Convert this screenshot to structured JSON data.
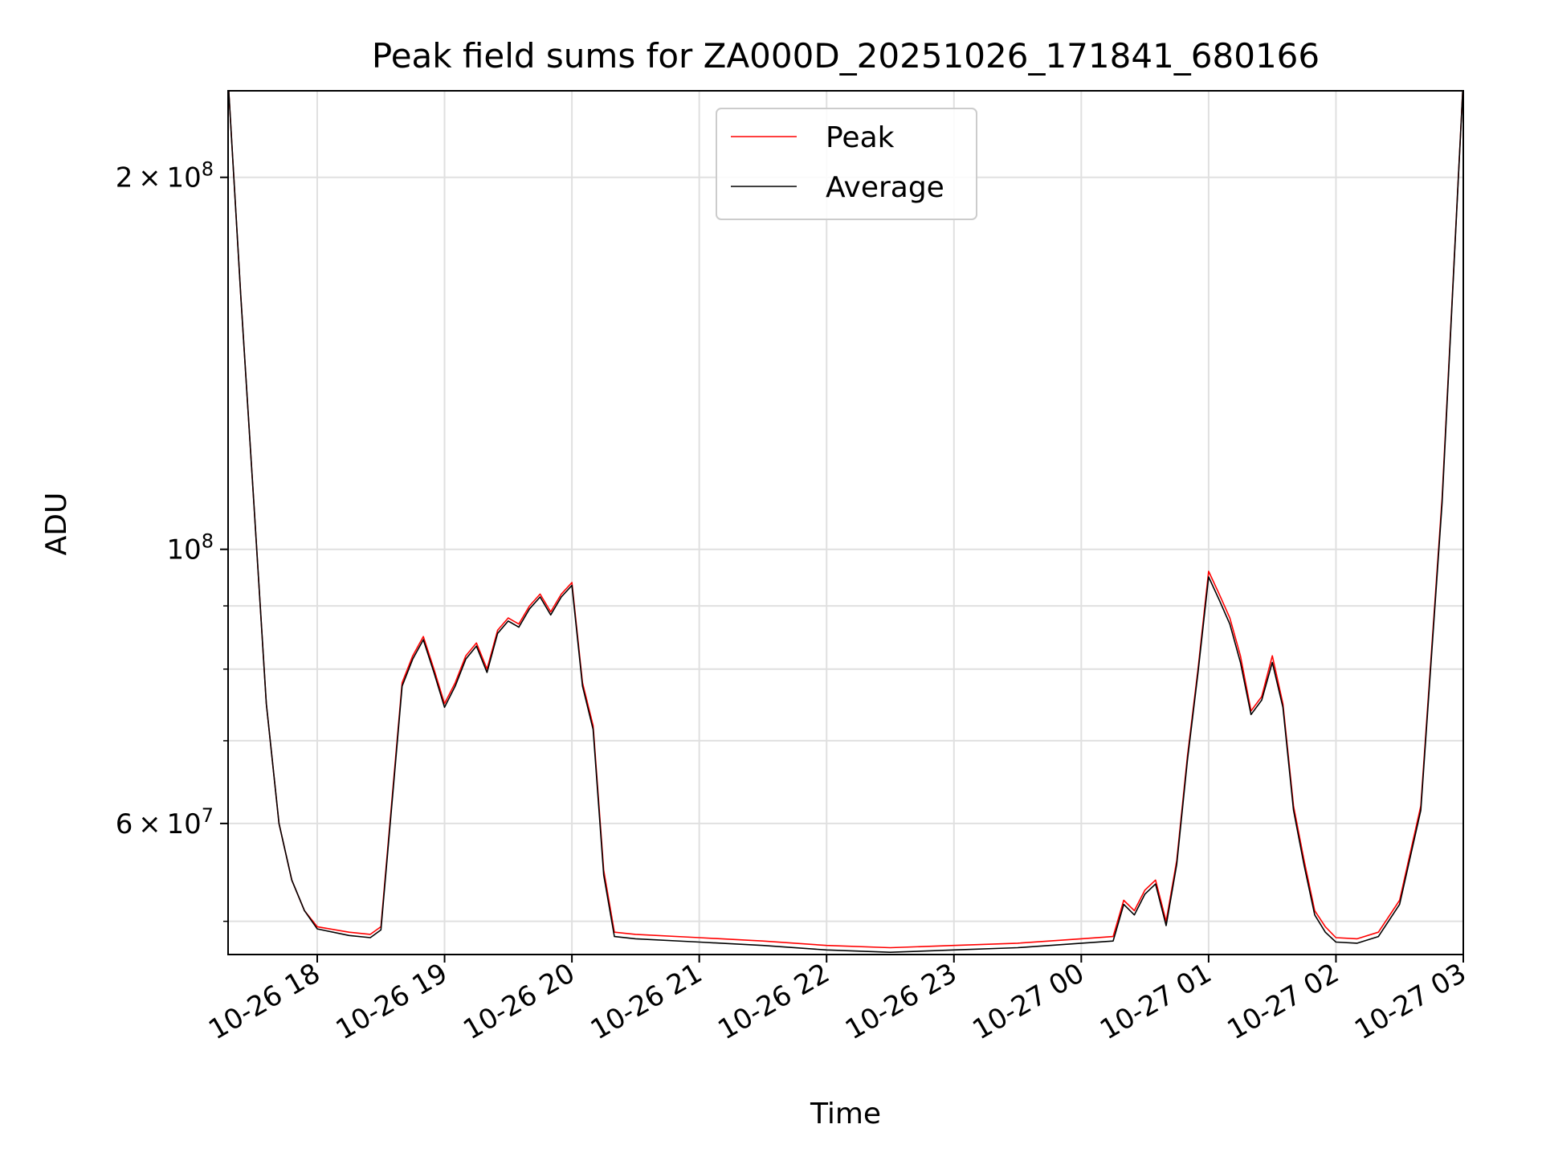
{
  "chart_data": {
    "type": "line",
    "title": "Peak field sums for ZA000D_20251026_171841_680166",
    "xlabel": "Time",
    "ylabel": "ADU",
    "yscale": "log",
    "ylim": [
      47000000,
      235000000
    ],
    "xlim": [
      "2025-10-26 17:18",
      "2025-10-27 03:00"
    ],
    "grid": true,
    "legend": {
      "placement": "upper center"
    },
    "x_tick_labels": [
      "10-26 18",
      "10-26 19",
      "10-26 20",
      "10-26 21",
      "10-26 22",
      "10-26 23",
      "10-27 00",
      "10-27 01",
      "10-27 02",
      "10-27 03"
    ],
    "x_ticks": [
      "2025-10-26 18:00",
      "2025-10-26 19:00",
      "2025-10-26 20:00",
      "2025-10-26 21:00",
      "2025-10-26 22:00",
      "2025-10-26 23:00",
      "2025-10-27 00:00",
      "2025-10-27 01:00",
      "2025-10-27 02:00",
      "2025-10-27 03:00"
    ],
    "y_major_ticks": [
      {
        "value": 60000000,
        "label_mant": "6",
        "label_exp": "7"
      },
      {
        "value": 100000000,
        "label_mant": "",
        "label_exp": "8"
      },
      {
        "value": 200000000,
        "label_mant": "2",
        "label_exp": "8"
      }
    ],
    "y_minor_ticks": [
      50000000,
      70000000,
      80000000,
      90000000
    ],
    "x": [
      "2025-10-26 17:18",
      "2025-10-26 17:24",
      "2025-10-26 17:30",
      "2025-10-26 17:36",
      "2025-10-26 17:42",
      "2025-10-26 17:48",
      "2025-10-26 17:54",
      "2025-10-26 18:00",
      "2025-10-26 18:15",
      "2025-10-26 18:25",
      "2025-10-26 18:30",
      "2025-10-26 18:36",
      "2025-10-26 18:40",
      "2025-10-26 18:45",
      "2025-10-26 18:50",
      "2025-10-26 18:55",
      "2025-10-26 19:00",
      "2025-10-26 19:05",
      "2025-10-26 19:10",
      "2025-10-26 19:15",
      "2025-10-26 19:20",
      "2025-10-26 19:25",
      "2025-10-26 19:30",
      "2025-10-26 19:35",
      "2025-10-26 19:40",
      "2025-10-26 19:45",
      "2025-10-26 19:50",
      "2025-10-26 19:55",
      "2025-10-26 20:00",
      "2025-10-26 20:05",
      "2025-10-26 20:10",
      "2025-10-26 20:15",
      "2025-10-26 20:20",
      "2025-10-26 20:30",
      "2025-10-26 21:00",
      "2025-10-26 21:30",
      "2025-10-26 22:00",
      "2025-10-26 22:30",
      "2025-10-26 23:00",
      "2025-10-26 23:30",
      "2025-10-27 00:00",
      "2025-10-27 00:15",
      "2025-10-27 00:20",
      "2025-10-27 00:25",
      "2025-10-27 00:30",
      "2025-10-27 00:35",
      "2025-10-27 00:40",
      "2025-10-27 00:45",
      "2025-10-27 00:50",
      "2025-10-27 00:55",
      "2025-10-27 01:00",
      "2025-10-27 01:05",
      "2025-10-27 01:10",
      "2025-10-27 01:15",
      "2025-10-27 01:20",
      "2025-10-27 01:25",
      "2025-10-27 01:30",
      "2025-10-27 01:35",
      "2025-10-27 01:40",
      "2025-10-27 01:45",
      "2025-10-27 01:50",
      "2025-10-27 01:55",
      "2025-10-27 02:00",
      "2025-10-27 02:10",
      "2025-10-27 02:20",
      "2025-10-27 02:30",
      "2025-10-27 02:40",
      "2025-10-27 02:50",
      "2025-10-27 03:00"
    ],
    "series": [
      {
        "name": "Peak",
        "color": "#ff0000",
        "values": [
          240000000,
          160000000,
          110000000,
          75000000,
          60000000,
          54000000,
          51000000,
          49500000,
          49000000,
          48800000,
          49500000,
          65000000,
          78000000,
          82000000,
          85000000,
          80000000,
          75000000,
          78000000,
          82000000,
          84000000,
          80000000,
          86000000,
          88000000,
          87000000,
          90000000,
          92000000,
          89000000,
          92000000,
          94000000,
          78000000,
          72000000,
          55000000,
          49000000,
          48800000,
          48500000,
          48200000,
          47800000,
          47600000,
          47800000,
          48000000,
          48400000,
          48600000,
          52000000,
          51000000,
          53000000,
          54000000,
          50000000,
          56000000,
          68000000,
          80000000,
          96000000,
          92000000,
          88000000,
          82000000,
          74000000,
          76000000,
          82000000,
          75000000,
          62000000,
          56000000,
          51000000,
          49500000,
          48500000,
          48400000,
          49000000,
          52000000,
          62000000,
          110000000,
          240000000
        ]
      },
      {
        "name": "Average",
        "color": "#000000",
        "values": [
          240000000,
          160000000,
          110000000,
          75000000,
          60000000,
          54000000,
          51000000,
          49300000,
          48700000,
          48500000,
          49200000,
          64500000,
          77500000,
          81500000,
          84500000,
          79500000,
          74500000,
          77500000,
          81500000,
          83500000,
          79500000,
          85500000,
          87500000,
          86500000,
          89500000,
          91500000,
          88500000,
          91500000,
          93500000,
          77500000,
          71500000,
          54500000,
          48600000,
          48400000,
          48100000,
          47800000,
          47400000,
          47200000,
          47400000,
          47600000,
          48000000,
          48200000,
          51600000,
          50600000,
          52600000,
          53600000,
          49600000,
          55600000,
          67500000,
          79500000,
          95000000,
          91000000,
          87000000,
          81000000,
          73500000,
          75500000,
          81000000,
          74500000,
          61500000,
          55500000,
          50600000,
          49000000,
          48100000,
          48000000,
          48600000,
          51600000,
          61500000,
          109000000,
          240000000
        ]
      }
    ]
  }
}
